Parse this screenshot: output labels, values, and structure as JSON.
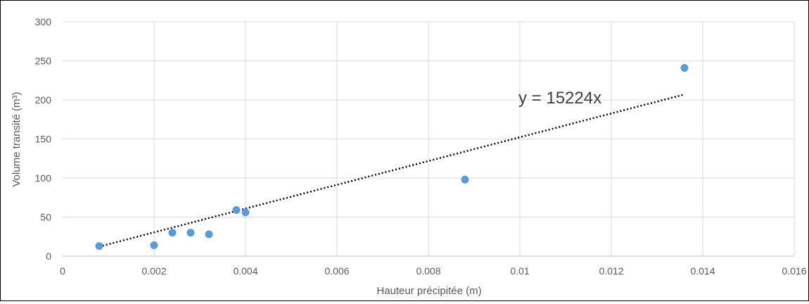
{
  "chart_data": {
    "type": "scatter",
    "title": "",
    "xlabel": "Hauteur précipitée (m)",
    "ylabel": "Volume transité (m³)",
    "xlim": [
      0,
      0.016
    ],
    "ylim": [
      0,
      300
    ],
    "grid": true,
    "legend": "none",
    "x_ticks": [
      "0",
      "0.002",
      "0.004",
      "0.006",
      "0.008",
      "0.01",
      "0.012",
      "0.014",
      "0.016"
    ],
    "y_ticks": [
      "0",
      "50",
      "100",
      "150",
      "200",
      "250",
      "300"
    ],
    "series": [
      {
        "points": [
          {
            "x": 0.0008,
            "y": 13
          },
          {
            "x": 0.002,
            "y": 14
          },
          {
            "x": 0.0024,
            "y": 30
          },
          {
            "x": 0.0028,
            "y": 30
          },
          {
            "x": 0.0032,
            "y": 28
          },
          {
            "x": 0.0038,
            "y": 59
          },
          {
            "x": 0.004,
            "y": 56
          },
          {
            "x": 0.0088,
            "y": 98
          },
          {
            "x": 0.0136,
            "y": 241
          }
        ],
        "color": "#5B9BD5"
      }
    ],
    "trendline": {
      "equation": "y = 15224x",
      "slope": 15224,
      "x_range": [
        0.0008,
        0.0136
      ],
      "color": "#000000",
      "style": "dotted"
    }
  }
}
